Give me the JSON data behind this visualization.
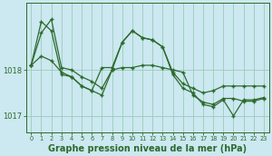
{
  "title": "Graphe pression niveau de la mer (hPa)",
  "bg_color": "#cce8f0",
  "grid_color": "#99ccbb",
  "line_color": "#2d6a2d",
  "line1_y": [
    1018.1,
    1018.8,
    1019.1,
    1018.05,
    1018.0,
    1017.85,
    1017.75,
    1017.6,
    1018.0,
    1018.6,
    1018.85,
    1018.7,
    1018.65,
    1018.5,
    1017.95,
    1017.7,
    1017.6,
    1017.5,
    1017.55,
    1017.65,
    1017.65,
    1017.65,
    1017.65,
    1017.65
  ],
  "line2_y": [
    1018.1,
    1019.05,
    1018.85,
    1017.9,
    1017.85,
    1017.65,
    1017.55,
    1018.05,
    1018.05,
    1018.6,
    1018.85,
    1018.7,
    1018.65,
    1018.5,
    1017.9,
    1017.6,
    1017.5,
    1017.25,
    1017.2,
    1017.35,
    1017.0,
    1017.35,
    1017.35,
    1017.4
  ],
  "line3_y": [
    1018.1,
    1018.3,
    1018.2,
    1017.95,
    1017.85,
    1017.65,
    1017.55,
    1017.45,
    1018.0,
    1018.05,
    1018.05,
    1018.1,
    1018.1,
    1018.05,
    1018.0,
    1017.95,
    1017.45,
    1017.3,
    1017.25,
    1017.38,
    1017.38,
    1017.32,
    1017.32,
    1017.38
  ],
  "ylim_min": 1016.65,
  "ylim_max": 1019.45,
  "yticks": [
    1017.0,
    1018.0
  ],
  "figwidth": 3.0,
  "figheight": 1.72,
  "dpi": 100
}
